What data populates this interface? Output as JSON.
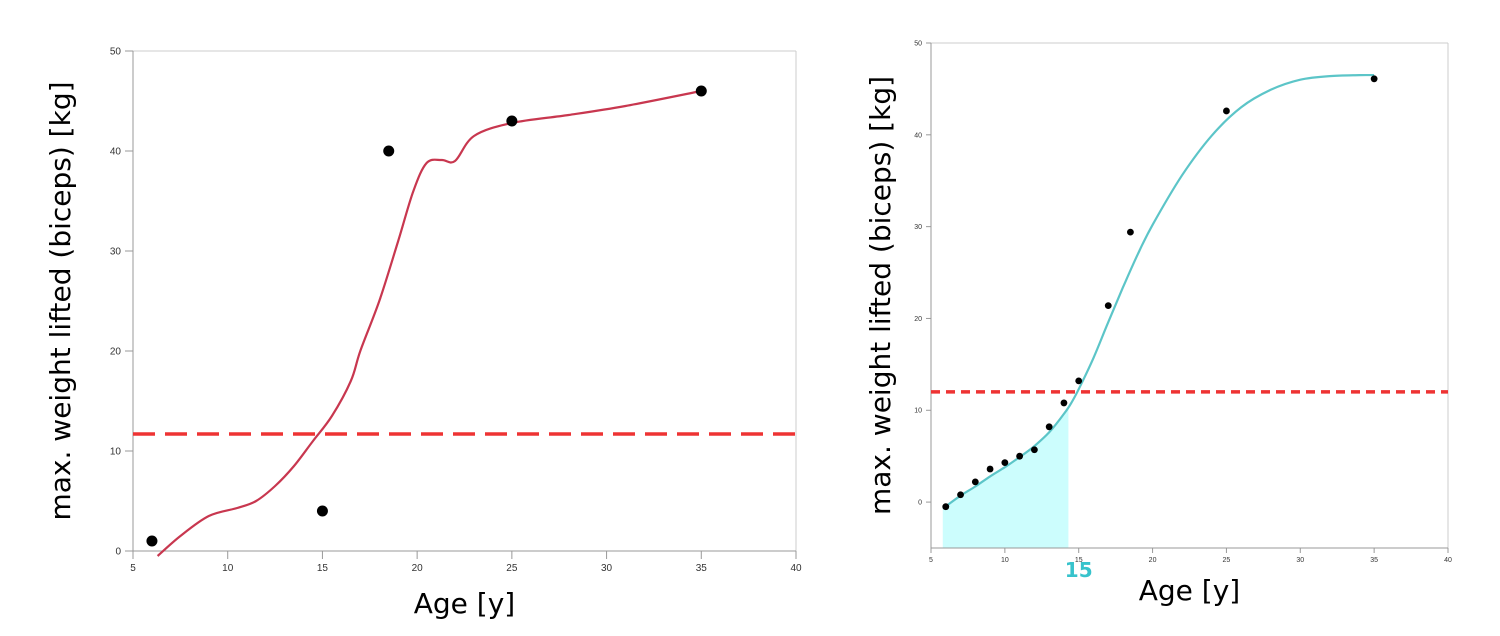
{
  "chart_data": [
    {
      "type": "scatter",
      "xlabel": "Age [y]",
      "ylabel": "max. weight lifted (biceps) [kg]",
      "xlim": [
        5,
        40
      ],
      "ylim": [
        0,
        50
      ],
      "xticks": [
        5,
        10,
        15,
        20,
        25,
        30,
        35,
        40
      ],
      "yticks": [
        0,
        10,
        20,
        30,
        40,
        50
      ],
      "grid": false,
      "points": [
        {
          "x": 6,
          "y": 1
        },
        {
          "x": 15,
          "y": 4
        },
        {
          "x": 18.5,
          "y": 40
        },
        {
          "x": 25,
          "y": 43
        },
        {
          "x": 35,
          "y": 46
        }
      ],
      "fit_curve": {
        "color": "#c8374f",
        "points": [
          [
            6.3,
            -0.5
          ],
          [
            7.5,
            1.5
          ],
          [
            9,
            3.5
          ],
          [
            10.5,
            4.3
          ],
          [
            11.5,
            5
          ],
          [
            12.5,
            6.5
          ],
          [
            13.5,
            8.5
          ],
          [
            14.5,
            11
          ],
          [
            15.5,
            13.5
          ],
          [
            16.5,
            17
          ],
          [
            17,
            20
          ],
          [
            18,
            25
          ],
          [
            19,
            31
          ],
          [
            19.8,
            36
          ],
          [
            20.5,
            38.8
          ],
          [
            21.3,
            39.1
          ],
          [
            22,
            39
          ],
          [
            23,
            41.5
          ],
          [
            25,
            42.8
          ],
          [
            28,
            43.6
          ],
          [
            31,
            44.5
          ],
          [
            35,
            46
          ]
        ]
      },
      "threshold": {
        "y": 11.7,
        "color": "#ee3333"
      },
      "colors": {
        "points": "#000000",
        "curve": "#c8374f",
        "threshold": "#ee3333"
      }
    },
    {
      "type": "scatter",
      "xlabel": "Age [y]",
      "ylabel": "max. weight lifted (biceps) [kg]",
      "xlim": [
        5,
        40
      ],
      "ylim": [
        -5,
        50
      ],
      "xticks": [
        5,
        10,
        15,
        20,
        25,
        30,
        35,
        40
      ],
      "yticks": [
        0,
        10,
        20,
        30,
        40,
        50
      ],
      "grid": false,
      "points": [
        {
          "x": 6,
          "y": -0.5
        },
        {
          "x": 7,
          "y": 0.8
        },
        {
          "x": 8,
          "y": 2.2
        },
        {
          "x": 9,
          "y": 3.6
        },
        {
          "x": 10,
          "y": 4.3
        },
        {
          "x": 11,
          "y": 5
        },
        {
          "x": 12,
          "y": 5.7
        },
        {
          "x": 13,
          "y": 8.2
        },
        {
          "x": 14,
          "y": 10.8
        },
        {
          "x": 15,
          "y": 13.2
        },
        {
          "x": 17,
          "y": 21.4
        },
        {
          "x": 18.5,
          "y": 29.4
        },
        {
          "x": 25,
          "y": 42.6
        },
        {
          "x": 35,
          "y": 46.1
        }
      ],
      "fit_curve": {
        "color": "#5cc5c8",
        "points": [
          [
            5.8,
            -0.7
          ],
          [
            7,
            0.7
          ],
          [
            8,
            1.7
          ],
          [
            9,
            2.8
          ],
          [
            10,
            3.8
          ],
          [
            11,
            4.9
          ],
          [
            12,
            6.1
          ],
          [
            13,
            7.6
          ],
          [
            14,
            9.6
          ],
          [
            14.5,
            10.8
          ],
          [
            15,
            12.3
          ],
          [
            16,
            15.7
          ],
          [
            17,
            19.6
          ],
          [
            18,
            23.4
          ],
          [
            19,
            27
          ],
          [
            20,
            30.2
          ],
          [
            22,
            35.6
          ],
          [
            24,
            39.9
          ],
          [
            26,
            43
          ],
          [
            28,
            44.9
          ],
          [
            30,
            46
          ],
          [
            32,
            46.4
          ],
          [
            34,
            46.5
          ],
          [
            35,
            46.5
          ]
        ]
      },
      "threshold": {
        "y": 12,
        "color": "#ee3333"
      },
      "shaded_region": {
        "x_start": 5.8,
        "x_end": 14.3,
        "color": "#ccfdfd"
      },
      "highlight_label": {
        "text": "15",
        "x": 15,
        "color": "#37c3cc"
      },
      "colors": {
        "points": "#000000",
        "curve": "#5cc5c8",
        "threshold": "#ee3333",
        "shade": "#ccfdfd",
        "highlight": "#37c3cc"
      }
    }
  ]
}
